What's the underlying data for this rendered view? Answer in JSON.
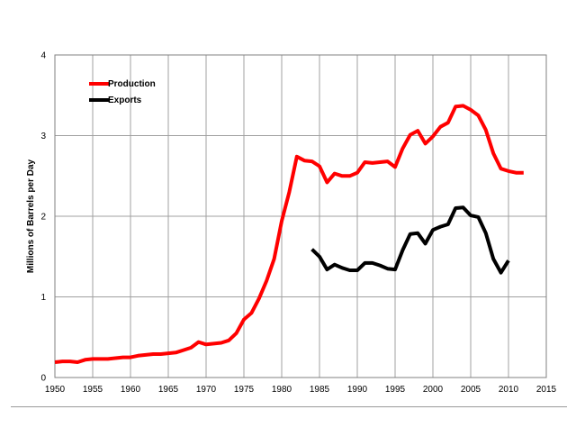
{
  "chart_data": {
    "type": "line",
    "title": "",
    "xlabel": "",
    "ylabel": "Millions of Barrels per Day",
    "xlim": [
      1950,
      2015
    ],
    "ylim": [
      0,
      4
    ],
    "xticks": [
      1950,
      1955,
      1960,
      1965,
      1970,
      1975,
      1980,
      1985,
      1990,
      1995,
      2000,
      2005,
      2010,
      2015
    ],
    "yticks": [
      0,
      1,
      2,
      3,
      4
    ],
    "grid": true,
    "legend": "top-left",
    "series": [
      {
        "name": "Production",
        "color": "#ff0000",
        "x": [
          1950,
          1951,
          1952,
          1953,
          1954,
          1955,
          1956,
          1957,
          1958,
          1959,
          1960,
          1961,
          1962,
          1963,
          1964,
          1965,
          1966,
          1967,
          1968,
          1969,
          1970,
          1971,
          1972,
          1973,
          1974,
          1975,
          1976,
          1977,
          1978,
          1979,
          1980,
          1981,
          1982,
          1983,
          1984,
          1985,
          1986,
          1987,
          1988,
          1989,
          1990,
          1991,
          1992,
          1993,
          1994,
          1995,
          1996,
          1997,
          1998,
          1999,
          2000,
          2001,
          2002,
          2003,
          2004,
          2005,
          2006,
          2007,
          2008,
          2009,
          2010,
          2011,
          2012
        ],
        "values": [
          0.19,
          0.2,
          0.2,
          0.19,
          0.22,
          0.23,
          0.23,
          0.23,
          0.24,
          0.25,
          0.25,
          0.27,
          0.28,
          0.29,
          0.29,
          0.3,
          0.31,
          0.34,
          0.37,
          0.44,
          0.41,
          0.42,
          0.43,
          0.46,
          0.55,
          0.72,
          0.8,
          0.98,
          1.2,
          1.47,
          1.94,
          2.3,
          2.74,
          2.69,
          2.68,
          2.62,
          2.42,
          2.53,
          2.5,
          2.5,
          2.54,
          2.67,
          2.66,
          2.67,
          2.68,
          2.61,
          2.84,
          3.01,
          3.06,
          2.9,
          2.99,
          3.11,
          3.16,
          3.36,
          3.37,
          3.32,
          3.25,
          3.07,
          2.78,
          2.59,
          2.56,
          2.54,
          2.54
        ]
      },
      {
        "name": "Exports",
        "color": "#000000",
        "x": [
          1984,
          1985,
          1986,
          1987,
          1988,
          1989,
          1990,
          1991,
          1992,
          1993,
          1994,
          1995,
          1996,
          1997,
          1998,
          1999,
          2000,
          2001,
          2002,
          2003,
          2004,
          2005,
          2006,
          2007,
          2008,
          2009,
          2010
        ],
        "values": [
          1.59,
          1.5,
          1.34,
          1.4,
          1.36,
          1.33,
          1.33,
          1.42,
          1.42,
          1.39,
          1.35,
          1.34,
          1.58,
          1.78,
          1.79,
          1.66,
          1.83,
          1.87,
          1.9,
          2.1,
          2.11,
          2.01,
          1.99,
          1.79,
          1.47,
          1.3,
          1.45
        ]
      }
    ]
  }
}
